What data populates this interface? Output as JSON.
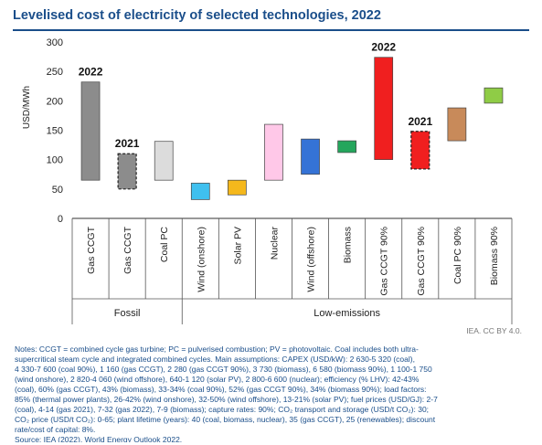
{
  "title": "Levelised cost of electricity of selected technologies, 2022",
  "source": "IEA. CC BY 4.0.",
  "notes": [
    "Notes: CCGT = combined cycle gas turbine; PC = pulverised combustion; PV = photovoltaic. Coal includes both ultra-",
    "supercritical steam cycle and integrated combined cycles. Main assumptions: CAPEX (USD/kW): 2 630-5 320 (coal),",
    "4 330-7 600 (coal 90%), 1 160 (gas CCGT), 2 280 (gas CCGT 90%), 3 730 (biomass), 6 580 (biomass 90%), 1 100-1 750",
    "(wind onshore), 2 820-4 060 (wind offshore), 640-1 120 (solar PV), 2 800-6 600 (nuclear); efficiency (% LHV): 42-43%",
    "(coal), 60% (gas CCGT), 43% (biomass), 33-34% (coal 90%), 52% (gas CCGT 90%), 34% (biomass 90%); load factors:",
    "85% (thermal power plants), 26-42% (wind onshore), 32-50% (wind offshore), 13-21% (solar PV); fuel prices (USD/GJ): 2-7",
    "(coal), 4-14 (gas 2021), 7-32 (gas 2022), 7-9 (biomass); capture rates: 90%; CO₂ transport and storage (USD/t CO₂): 30;",
    "CO₂ price (USD/t CO₂): 0-65; plant lifetime (years): 40 (coal, biomass, nuclear), 35 (gas CCGT), 25 (renewables); discount",
    "rate/cost of capital: 8%.",
    "Source: IEA (2022), World Energy Outlook 2022."
  ],
  "chart_data": {
    "type": "floating-bar",
    "ylabel": "USD/MWh",
    "ylim": [
      0,
      300
    ],
    "yticks": [
      0,
      50,
      100,
      150,
      200,
      250,
      300
    ],
    "groups": [
      {
        "label": "Fossil",
        "from": 0,
        "to": 2
      },
      {
        "label": "Low-emissions",
        "from": 3,
        "to": 11
      }
    ],
    "bars": [
      {
        "category": "Gas CCGT",
        "low": 65,
        "high": 232,
        "color": "#8c8c8c",
        "dashed": false,
        "annotation": "2022"
      },
      {
        "category": "Gas CCGT",
        "low": 50,
        "high": 110,
        "color": "#8c8c8c",
        "dashed": true,
        "annotation": "2021"
      },
      {
        "category": "Coal PC",
        "low": 65,
        "high": 131,
        "color": "#dcdcdc",
        "dashed": false,
        "annotation": ""
      },
      {
        "category": "Wind (onshore)",
        "low": 32,
        "high": 60,
        "color": "#3fc0ef",
        "dashed": false,
        "annotation": ""
      },
      {
        "category": "Solar PV",
        "low": 40,
        "high": 65,
        "color": "#f5b81c",
        "dashed": false,
        "annotation": ""
      },
      {
        "category": "Nuclear",
        "low": 65,
        "high": 160,
        "color": "#ffc8e8",
        "dashed": false,
        "annotation": ""
      },
      {
        "category": "Wind (offshore)",
        "low": 75,
        "high": 135,
        "color": "#3573d6",
        "dashed": false,
        "annotation": ""
      },
      {
        "category": "Biomass",
        "low": 112,
        "high": 132,
        "color": "#24a65c",
        "dashed": false,
        "annotation": ""
      },
      {
        "category": "Gas CCGT 90%",
        "low": 100,
        "high": 274,
        "color": "#f01f1f",
        "dashed": false,
        "annotation": "2022"
      },
      {
        "category": "Gas CCGT 90%",
        "low": 84,
        "high": 148,
        "color": "#f01f1f",
        "dashed": true,
        "annotation": "2021"
      },
      {
        "category": "Coal PC 90%",
        "low": 132,
        "high": 188,
        "color": "#c88a5a",
        "dashed": false,
        "annotation": ""
      },
      {
        "category": "Biomass 90%",
        "low": 196,
        "high": 222,
        "color": "#8fcc46",
        "dashed": false,
        "annotation": ""
      }
    ]
  }
}
